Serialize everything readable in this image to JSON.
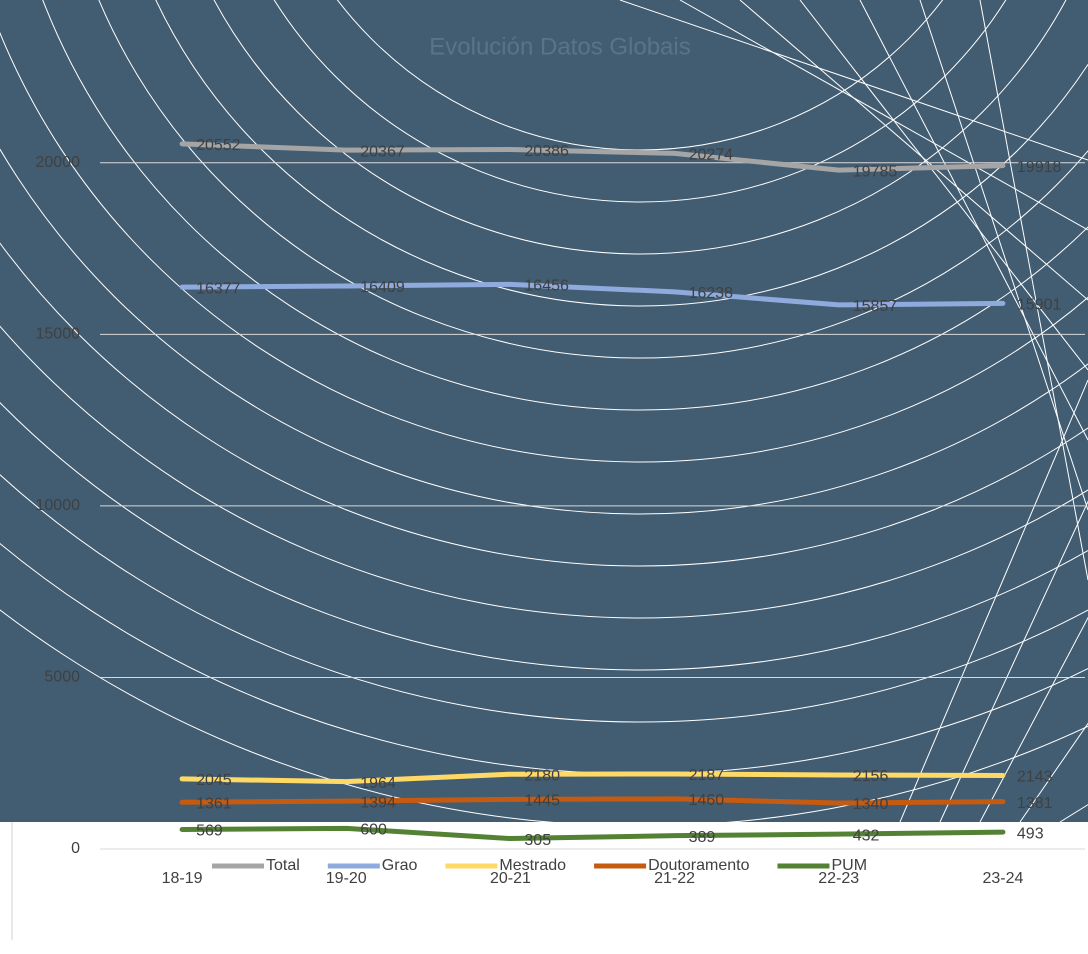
{
  "chart_data": {
    "type": "line",
    "title": "Evolución Datos Globais",
    "categories": [
      "18-19",
      "19-20",
      "20-21",
      "21-22",
      "22-23",
      "23-24"
    ],
    "series": [
      {
        "name": "Total",
        "color": "#a5a5a5",
        "values": [
          20552,
          20367,
          20386,
          20274,
          19785,
          19918
        ]
      },
      {
        "name": "Grao",
        "color": "#8faadc",
        "values": [
          16377,
          16409,
          16456,
          16238,
          15857,
          15901
        ]
      },
      {
        "name": "Mestrado",
        "color": "#ffd966",
        "values": [
          2045,
          1964,
          2180,
          2187,
          2156,
          2143
        ]
      },
      {
        "name": "Doutoramento",
        "color": "#c55a11",
        "values": [
          1361,
          1394,
          1445,
          1460,
          1340,
          1381
        ]
      },
      {
        "name": "PUM",
        "color": "#548235",
        "values": [
          569,
          600,
          305,
          389,
          432,
          493
        ]
      }
    ],
    "ylim": [
      0,
      22500
    ],
    "yticks": [
      0,
      5000,
      10000,
      15000,
      20000
    ],
    "grid": true,
    "legend": "bottom"
  }
}
